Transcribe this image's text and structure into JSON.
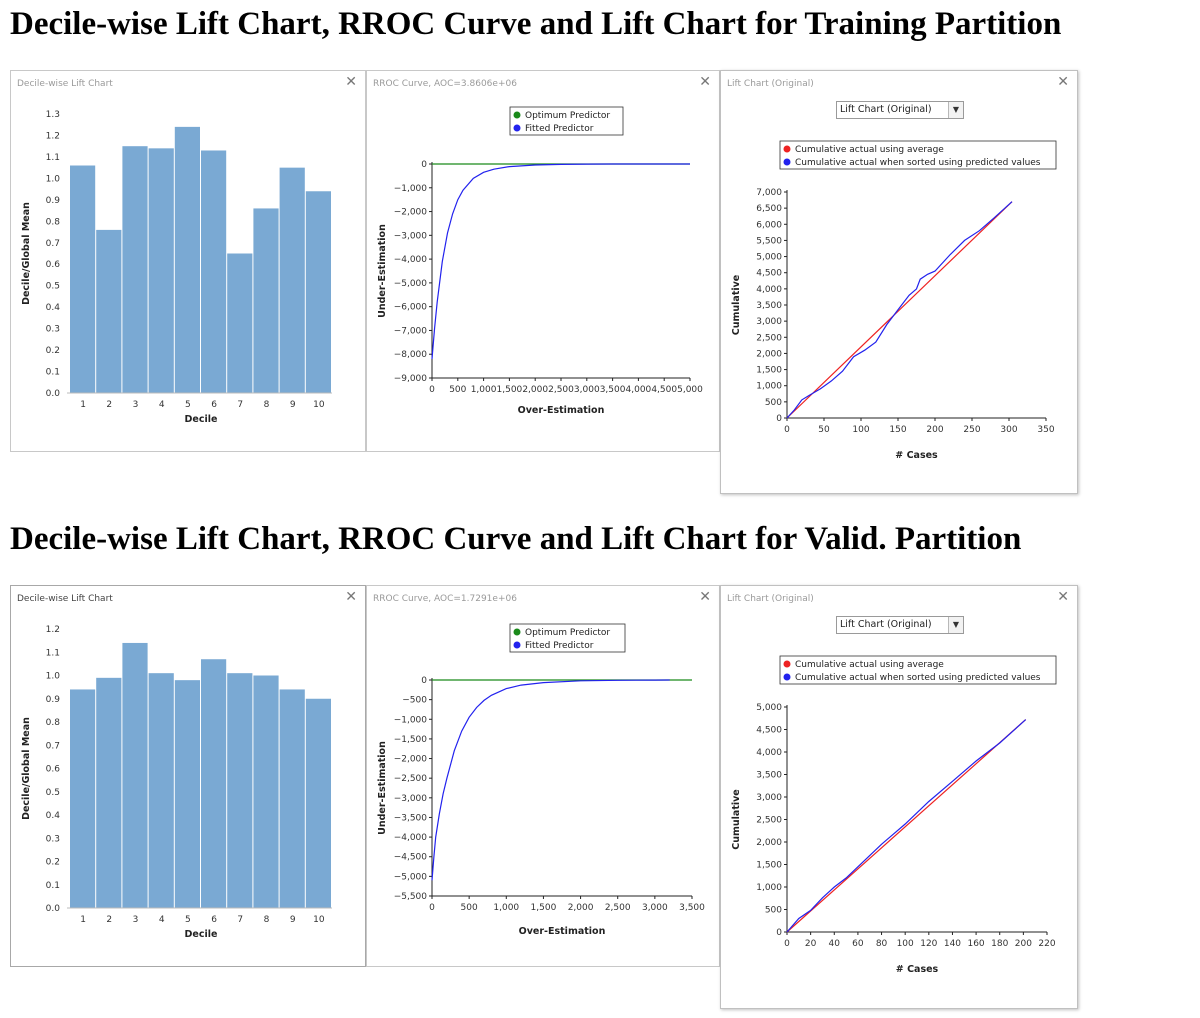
{
  "headings": {
    "training": "Decile-wise Lift Chart, RROC Curve and Lift Chart for Training Partition",
    "valid": "Decile-wise Lift Chart, RROC Curve and Lift Chart for Valid. Partition"
  },
  "training": {
    "decile_window": {
      "title": "Decile-wise Lift Chart",
      "close": "✕"
    },
    "rroc_window": {
      "title": "RROC Curve, AOC=3.8606e+06",
      "close": "✕"
    },
    "lift_window": {
      "title": "Lift Chart (Original)",
      "close": "✕",
      "dropdown_value": "Lift Chart (Original)"
    }
  },
  "valid": {
    "decile_window": {
      "title": "Decile-wise Lift Chart",
      "close": "✕"
    },
    "rroc_window": {
      "title": "RROC Curve, AOC=1.7291e+06",
      "close": "✕"
    },
    "lift_window": {
      "title": "Lift Chart (Original)",
      "close": "✕",
      "dropdown_value": "Lift Chart (Original)"
    }
  },
  "colors": {
    "bar": "#7aa9d3",
    "fitted": "#2222ee",
    "optimum": "#1a8a1a",
    "average": "#ee2222"
  },
  "chart_data": [
    {
      "id": "train-decile",
      "type": "bar",
      "title": "",
      "xlabel": "Decile",
      "ylabel": "Decile/Global Mean",
      "categories": [
        "1",
        "2",
        "3",
        "4",
        "5",
        "6",
        "7",
        "8",
        "9",
        "10"
      ],
      "values": [
        1.06,
        0.76,
        1.15,
        1.14,
        1.24,
        1.13,
        0.65,
        0.86,
        1.05,
        0.94
      ],
      "ylim": [
        0,
        1.3
      ],
      "yticks": [
        "0.0",
        "0.1",
        "0.2",
        "0.3",
        "0.4",
        "0.5",
        "0.6",
        "0.7",
        "0.8",
        "0.9",
        "1.0",
        "1.1",
        "1.2",
        "1.3"
      ]
    },
    {
      "id": "train-rroc",
      "type": "line",
      "title": "",
      "xlabel": "Over-Estimation",
      "ylabel": "Under-Estimation",
      "legend": [
        "Optimum Predictor",
        "Fitted Predictor"
      ],
      "xlim": [
        0,
        5000
      ],
      "ylim": [
        -9000,
        0
      ],
      "xticks": [
        "0",
        "500",
        "1,000",
        "1,500",
        "2,000",
        "2,500",
        "3,000",
        "3,500",
        "4,000",
        "4,500",
        "5,000"
      ],
      "yticks": [
        "0",
        "−1,000",
        "−2,000",
        "−3,000",
        "−4,000",
        "−5,000",
        "−6,000",
        "−7,000",
        "−8,000",
        "−9,000"
      ],
      "series": [
        {
          "name": "Optimum Predictor",
          "x": [
            0,
            5000
          ],
          "y": [
            0,
            0
          ]
        },
        {
          "name": "Fitted Predictor",
          "x": [
            0,
            50,
            100,
            200,
            300,
            400,
            500,
            600,
            800,
            1000,
            1200,
            1500,
            2000,
            2500,
            3000,
            3500,
            4000,
            4500,
            5000
          ],
          "y": [
            -8200,
            -6900,
            -5800,
            -4100,
            -2900,
            -2100,
            -1500,
            -1100,
            -600,
            -350,
            -220,
            -110,
            -40,
            -15,
            -5,
            -2,
            0,
            0,
            0
          ]
        }
      ]
    },
    {
      "id": "train-lift",
      "type": "line",
      "title": "",
      "xlabel": "# Cases",
      "ylabel": "Cumulative",
      "legend": [
        "Cumulative actual using average",
        "Cumulative actual when sorted using predicted values"
      ],
      "xlim": [
        0,
        350
      ],
      "ylim": [
        0,
        7000
      ],
      "xticks": [
        "0",
        "50",
        "100",
        "150",
        "200",
        "250",
        "300",
        "350"
      ],
      "yticks": [
        "0",
        "500",
        "1,000",
        "1,500",
        "2,000",
        "2,500",
        "3,000",
        "3,500",
        "4,000",
        "4,500",
        "5,000",
        "5,500",
        "6,000",
        "6,500",
        "7,000"
      ],
      "series": [
        {
          "name": "Cumulative actual using average",
          "x": [
            0,
            304
          ],
          "y": [
            0,
            6700
          ]
        },
        {
          "name": "Cumulative actual when sorted using predicted values",
          "x": [
            0,
            10,
            20,
            30,
            45,
            60,
            75,
            90,
            105,
            120,
            135,
            150,
            165,
            175,
            180,
            190,
            200,
            220,
            240,
            260,
            280,
            304
          ],
          "y": [
            0,
            250,
            560,
            700,
            900,
            1150,
            1450,
            1900,
            2100,
            2350,
            2900,
            3350,
            3800,
            4000,
            4300,
            4450,
            4550,
            5050,
            5500,
            5800,
            6200,
            6700
          ]
        }
      ]
    },
    {
      "id": "valid-decile",
      "type": "bar",
      "title": "",
      "xlabel": "Decile",
      "ylabel": "Decile/Global Mean",
      "categories": [
        "1",
        "2",
        "3",
        "4",
        "5",
        "6",
        "7",
        "8",
        "9",
        "10"
      ],
      "values": [
        0.94,
        0.99,
        1.14,
        1.01,
        0.98,
        1.07,
        1.01,
        1.0,
        0.94,
        0.9
      ],
      "ylim": [
        0,
        1.2
      ],
      "yticks": [
        "0.0",
        "0.1",
        "0.2",
        "0.3",
        "0.4",
        "0.5",
        "0.6",
        "0.7",
        "0.8",
        "0.9",
        "1.0",
        "1.1",
        "1.2"
      ]
    },
    {
      "id": "valid-rroc",
      "type": "line",
      "title": "",
      "xlabel": "Over-Estimation",
      "ylabel": "Under-Estimation",
      "legend": [
        "Optimum Predictor",
        "Fitted Predictor"
      ],
      "xlim": [
        0,
        3500
      ],
      "ylim": [
        -5500,
        0
      ],
      "xticks": [
        "0",
        "500",
        "1,000",
        "1,500",
        "2,000",
        "2,500",
        "3,000",
        "3,500"
      ],
      "yticks": [
        "0",
        "−500",
        "−1,000",
        "−1,500",
        "−2,000",
        "−2,500",
        "−3,000",
        "−3,500",
        "−4,000",
        "−4,500",
        "−5,000",
        "−5,500"
      ],
      "series": [
        {
          "name": "Optimum Predictor",
          "x": [
            0,
            3500
          ],
          "y": [
            0,
            0
          ]
        },
        {
          "name": "Fitted Predictor",
          "x": [
            0,
            25,
            50,
            100,
            150,
            200,
            300,
            400,
            500,
            600,
            700,
            800,
            1000,
            1200,
            1500,
            2000,
            2500,
            3000,
            3200
          ],
          "y": [
            -5100,
            -4500,
            -4000,
            -3400,
            -2900,
            -2500,
            -1800,
            -1300,
            -950,
            -700,
            -520,
            -390,
            -220,
            -130,
            -65,
            -20,
            -8,
            -2,
            0
          ]
        }
      ]
    },
    {
      "id": "valid-lift",
      "type": "line",
      "title": "",
      "xlabel": "# Cases",
      "ylabel": "Cumulative",
      "legend": [
        "Cumulative actual using average",
        "Cumulative actual when sorted using predicted values"
      ],
      "xlim": [
        0,
        220
      ],
      "ylim": [
        0,
        5000
      ],
      "xticks": [
        "0",
        "20",
        "40",
        "60",
        "80",
        "100",
        "120",
        "140",
        "160",
        "180",
        "200",
        "220"
      ],
      "yticks": [
        "0",
        "500",
        "1,000",
        "1,500",
        "2,000",
        "2,500",
        "3,000",
        "3,500",
        "4,000",
        "4,500",
        "5,000"
      ],
      "series": [
        {
          "name": "Cumulative actual using average",
          "x": [
            0,
            202
          ],
          "y": [
            0,
            4720
          ]
        },
        {
          "name": "Cumulative actual when sorted using predicted values",
          "x": [
            0,
            10,
            20,
            30,
            40,
            50,
            60,
            80,
            100,
            120,
            140,
            160,
            180,
            202
          ],
          "y": [
            0,
            300,
            480,
            760,
            1000,
            1200,
            1450,
            1950,
            2400,
            2900,
            3350,
            3800,
            4200,
            4720
          ]
        }
      ]
    }
  ]
}
